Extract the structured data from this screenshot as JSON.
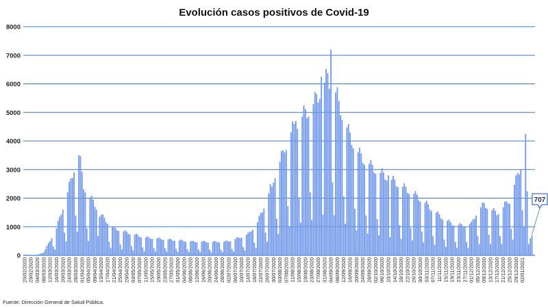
{
  "chart_data": {
    "type": "bar",
    "title": "Evolución casos positivos de Covid-19",
    "xlabel": "",
    "ylabel": "",
    "ylim": [
      0,
      8000
    ],
    "yticks": [
      0,
      1000,
      2000,
      3000,
      4000,
      5000,
      6000,
      7000,
      8000
    ],
    "grid": true,
    "bar_color": "#6f97f0",
    "grid_color": "#3a78c2",
    "x_tick_labels": [
      "25/02/2020",
      "29/02/2020",
      "04/03/2020",
      "08/03/2020",
      "12/03/2020",
      "16/03/2020",
      "20/03/2020",
      "24/03/2020",
      "28/03/2020",
      "01/04/2020",
      "05/04/2020",
      "09/04/2020",
      "13/04/2020",
      "17/04/2020",
      "21/04/2020",
      "25/04/2020",
      "29/04/2020",
      "03/05/2020",
      "07/05/2020",
      "11/05/2020",
      "15/05/2020",
      "19/05/2020",
      "23/05/2020",
      "27/05/2020",
      "31/05/2020",
      "04/06/2020",
      "08/06/2020",
      "12/06/2020",
      "16/06/2020",
      "20/06/2020",
      "24/06/2020",
      "28/06/2020",
      "02/07/2020",
      "06/07/2020",
      "10/07/2020",
      "14/07/2020",
      "18/07/2020",
      "22/07/2020",
      "26/07/2020",
      "30/07/2020",
      "03/08/2020",
      "07/08/2020",
      "11/08/2020",
      "15/08/2020",
      "19/08/2020",
      "23/08/2020",
      "27/08/2020",
      "31/08/2020",
      "04/09/2020",
      "08/09/2020",
      "12/09/2020",
      "16/09/2020",
      "20/09/2020",
      "24/09/2020",
      "28/09/2020",
      "02/10/2020",
      "06/10/2020",
      "10/10/2020",
      "14/10/2020",
      "18/10/2020",
      "22/10/2020",
      "26/10/2020",
      "30/10/2020",
      "03/11/2020",
      "07/11/2020",
      "11/11/2020",
      "15/11/2020",
      "19/11/2020",
      "23/11/2020",
      "27/11/2020",
      "01/12/2020",
      "05/12/2020",
      "09/12/2020",
      "13/12/2020",
      "17/12/2020",
      "21/12/2020",
      "25/12/2020",
      "29/12/2020",
      "02/01/2021"
    ],
    "x_start": "25/02/2020",
    "anchors": [
      [
        0,
        0
      ],
      [
        8,
        20
      ],
      [
        12,
        100
      ],
      [
        17,
        600
      ],
      [
        20,
        900
      ],
      [
        24,
        1600
      ],
      [
        27,
        2100
      ],
      [
        30,
        2700
      ],
      [
        33,
        3300
      ],
      [
        34,
        3500
      ],
      [
        37,
        2300
      ],
      [
        40,
        2000
      ],
      [
        43,
        1800
      ],
      [
        47,
        1400
      ],
      [
        52,
        1100
      ],
      [
        56,
        900
      ],
      [
        62,
        800
      ],
      [
        68,
        700
      ],
      [
        75,
        600
      ],
      [
        85,
        550
      ],
      [
        95,
        500
      ],
      [
        105,
        460
      ],
      [
        115,
        450
      ],
      [
        125,
        450
      ],
      [
        130,
        500
      ],
      [
        140,
        700
      ],
      [
        146,
        1100
      ],
      [
        152,
        1900
      ],
      [
        157,
        2700
      ],
      [
        162,
        3400
      ],
      [
        167,
        4100
      ],
      [
        172,
        4500
      ],
      [
        177,
        4800
      ],
      [
        182,
        5100
      ],
      [
        186,
        5600
      ],
      [
        190,
        5900
      ],
      [
        194,
        5600
      ],
      [
        198,
        4900
      ],
      [
        203,
        4100
      ],
      [
        208,
        3500
      ],
      [
        214,
        3100
      ],
      [
        220,
        2850
      ],
      [
        226,
        2650
      ],
      [
        232,
        2450
      ],
      [
        238,
        2250
      ],
      [
        244,
        2050
      ],
      [
        250,
        1800
      ],
      [
        256,
        1500
      ],
      [
        262,
        1250
      ],
      [
        268,
        1050
      ],
      [
        274,
        1000
      ],
      [
        280,
        1050
      ],
      [
        284,
        1500
      ],
      [
        288,
        1700
      ],
      [
        292,
        1550
      ],
      [
        296,
        1400
      ],
      [
        300,
        1600
      ],
      [
        304,
        1900
      ],
      [
        308,
        2500
      ],
      [
        311,
        3000
      ],
      [
        313,
        4000
      ],
      [
        314,
        4250
      ],
      [
        315,
        2000
      ],
      [
        316,
        400
      ],
      [
        317,
        600
      ],
      [
        318,
        707
      ]
    ],
    "highlight_peaks": [
      [
        34,
        3500
      ],
      [
        47,
        1350
      ],
      [
        155,
        2400
      ],
      [
        163,
        3600
      ],
      [
        170,
        4700
      ],
      [
        186,
        6250
      ],
      [
        192,
        7200
      ],
      [
        197,
        5400
      ],
      [
        216,
        3200
      ],
      [
        228,
        2800
      ],
      [
        304,
        1800
      ],
      [
        308,
        2800
      ],
      [
        314,
        4250
      ]
    ],
    "weekend_dips": true,
    "last_value": 707,
    "last_value_label": "707"
  },
  "source": "Fuente: Dirección General de Salud Pública."
}
